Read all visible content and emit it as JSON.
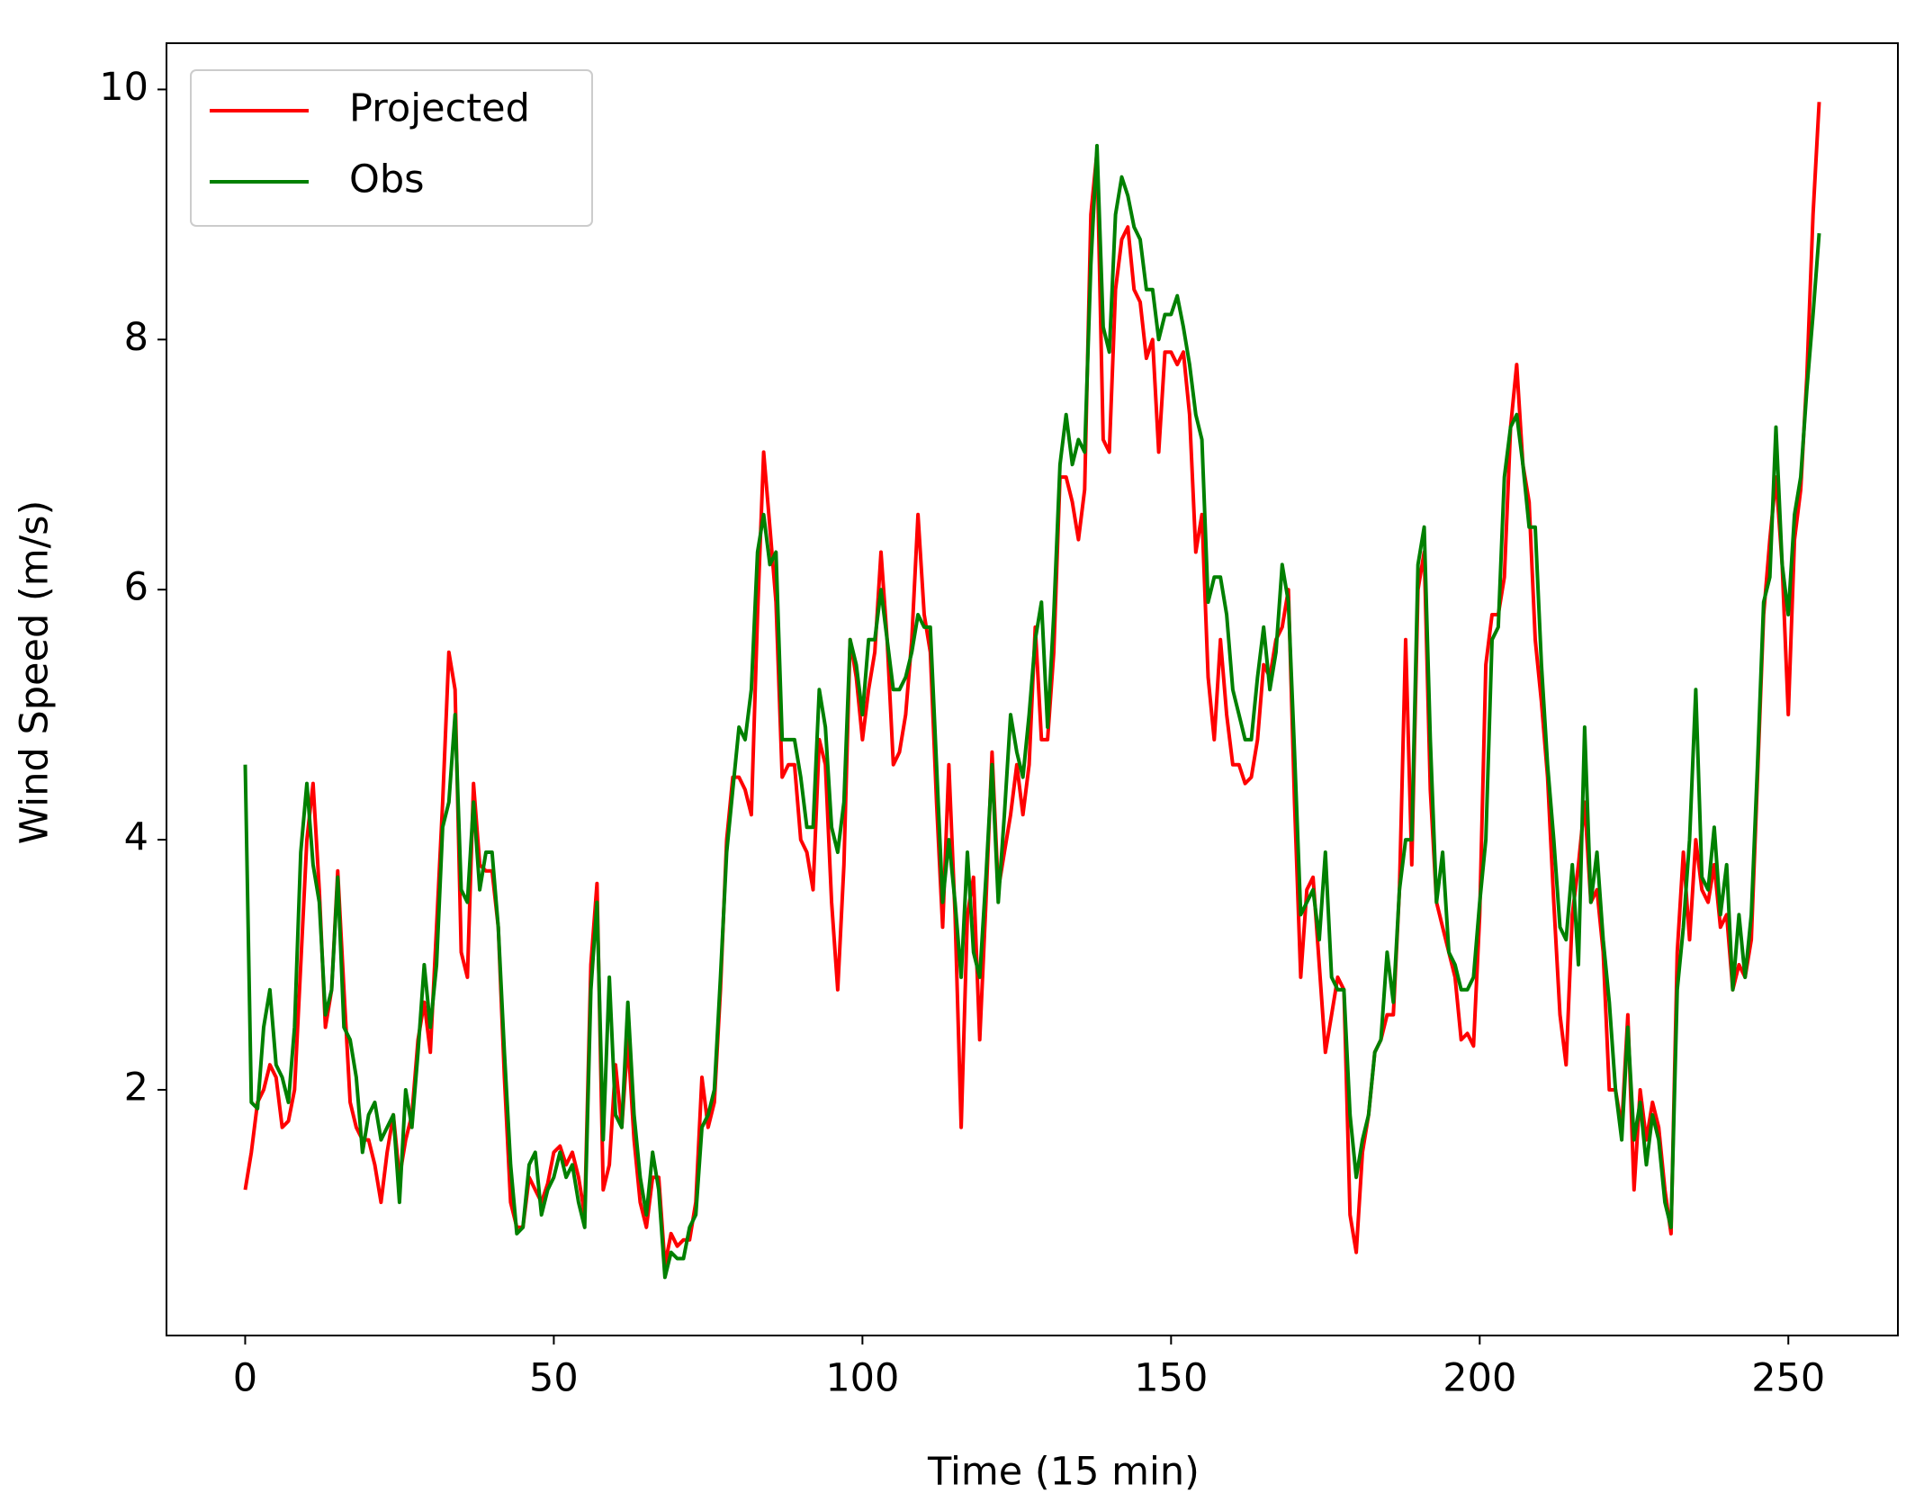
{
  "chart_data": {
    "type": "line",
    "xlabel": "Time (15 min)",
    "ylabel": "Wind Speed (m/s)",
    "x": [
      0,
      1,
      2,
      3,
      4,
      5,
      6,
      7,
      8,
      9,
      10,
      11,
      12,
      13,
      14,
      15,
      16,
      17,
      18,
      19,
      20,
      21,
      22,
      23,
      24,
      25,
      26,
      27,
      28,
      29,
      30,
      31,
      32,
      33,
      34,
      35,
      36,
      37,
      38,
      39,
      40,
      41,
      42,
      43,
      44,
      45,
      46,
      47,
      48,
      49,
      50,
      51,
      52,
      53,
      54,
      55,
      56,
      57,
      58,
      59,
      60,
      61,
      62,
      63,
      64,
      65,
      66,
      67,
      68,
      69,
      70,
      71,
      72,
      73,
      74,
      75,
      76,
      77,
      78,
      79,
      80,
      81,
      82,
      83,
      84,
      85,
      86,
      87,
      88,
      89,
      90,
      91,
      92,
      93,
      94,
      95,
      96,
      97,
      98,
      99,
      100,
      101,
      102,
      103,
      104,
      105,
      106,
      107,
      108,
      109,
      110,
      111,
      112,
      113,
      114,
      115,
      116,
      117,
      118,
      119,
      120,
      121,
      122,
      123,
      124,
      125,
      126,
      127,
      128,
      129,
      130,
      131,
      132,
      133,
      134,
      135,
      136,
      137,
      138,
      139,
      140,
      141,
      142,
      143,
      144,
      145,
      146,
      147,
      148,
      149,
      150,
      151,
      152,
      153,
      154,
      155,
      156,
      157,
      158,
      159,
      160,
      161,
      162,
      163,
      164,
      165,
      166,
      167,
      168,
      169,
      170,
      171,
      172,
      173,
      174,
      175,
      176,
      177,
      178,
      179,
      180,
      181,
      182,
      183,
      184,
      185,
      186,
      187,
      188,
      189,
      190,
      191,
      192,
      193,
      194,
      195,
      196,
      197,
      198,
      199,
      200,
      201,
      202,
      203,
      204,
      205,
      206,
      207,
      208,
      209,
      210,
      211,
      212,
      213,
      214,
      215,
      216,
      217,
      218,
      219,
      220,
      221,
      222,
      223,
      224,
      225,
      226,
      227,
      228,
      229,
      230,
      231,
      232,
      233,
      234,
      235,
      236,
      237,
      238,
      239,
      240,
      241,
      242,
      243,
      244,
      245,
      246,
      247,
      248,
      249,
      250,
      251,
      252,
      253,
      254,
      255
    ],
    "series": [
      {
        "name": "Projected",
        "color": "#ff0000",
        "values": [
          1.2,
          1.5,
          1.9,
          2.0,
          2.2,
          2.1,
          1.7,
          1.75,
          2.0,
          3.0,
          4.0,
          4.45,
          3.6,
          2.5,
          2.8,
          3.75,
          2.8,
          1.9,
          1.7,
          1.6,
          1.6,
          1.4,
          1.1,
          1.5,
          1.8,
          1.3,
          1.6,
          1.8,
          2.4,
          2.7,
          2.3,
          3.3,
          4.3,
          5.5,
          5.2,
          3.1,
          2.9,
          4.45,
          3.8,
          3.75,
          3.75,
          3.3,
          2.1,
          1.1,
          0.9,
          0.9,
          1.3,
          1.2,
          1.1,
          1.25,
          1.5,
          1.55,
          1.4,
          1.5,
          1.3,
          1.0,
          3.0,
          3.65,
          1.2,
          1.4,
          2.2,
          1.7,
          2.4,
          1.6,
          1.1,
          0.9,
          1.3,
          1.3,
          0.6,
          0.85,
          0.75,
          0.8,
          0.8,
          1.1,
          2.1,
          1.7,
          1.9,
          2.8,
          4.0,
          4.5,
          4.5,
          4.4,
          4.2,
          5.8,
          7.1,
          6.5,
          5.9,
          4.5,
          4.6,
          4.6,
          4.0,
          3.9,
          3.6,
          4.8,
          4.6,
          3.5,
          2.8,
          3.8,
          5.6,
          5.3,
          4.8,
          5.2,
          5.5,
          6.3,
          5.6,
          4.6,
          4.7,
          5.0,
          5.6,
          6.6,
          5.8,
          5.5,
          4.3,
          3.3,
          4.6,
          3.4,
          1.7,
          3.4,
          3.7,
          2.4,
          3.5,
          4.7,
          3.6,
          3.9,
          4.2,
          4.6,
          4.2,
          4.6,
          5.7,
          4.8,
          4.8,
          5.5,
          6.9,
          6.9,
          6.7,
          6.4,
          6.8,
          9.0,
          9.5,
          7.2,
          7.1,
          8.4,
          8.8,
          8.9,
          8.4,
          8.3,
          7.85,
          8.0,
          7.1,
          7.9,
          7.9,
          7.8,
          7.9,
          7.4,
          6.3,
          6.6,
          5.3,
          4.8,
          5.6,
          5.0,
          4.6,
          4.6,
          4.45,
          4.5,
          4.8,
          5.4,
          5.3,
          5.6,
          5.7,
          6.0,
          4.3,
          2.9,
          3.6,
          3.7,
          3.0,
          2.3,
          2.6,
          2.9,
          2.8,
          1.0,
          0.7,
          1.5,
          1.8,
          2.3,
          2.4,
          2.6,
          2.6,
          3.6,
          5.6,
          3.8,
          6.0,
          6.3,
          4.4,
          3.5,
          3.3,
          3.1,
          2.9,
          2.4,
          2.45,
          2.35,
          3.4,
          5.4,
          5.8,
          5.8,
          6.1,
          7.3,
          7.8,
          7.0,
          6.7,
          5.6,
          5.1,
          4.5,
          3.5,
          2.6,
          2.2,
          3.4,
          3.8,
          4.3,
          3.5,
          3.6,
          3.1,
          2.0,
          2.0,
          1.7,
          2.6,
          1.2,
          2.0,
          1.6,
          1.9,
          1.7,
          1.2,
          0.85,
          3.1,
          3.9,
          3.2,
          4.0,
          3.6,
          3.5,
          3.8,
          3.3,
          3.4,
          2.8,
          3.0,
          2.9,
          3.2,
          4.5,
          5.8,
          6.4,
          6.9,
          6.2,
          5.0,
          6.4,
          6.8,
          7.7,
          9.0,
          9.9
        ]
      },
      {
        "name": "Obs",
        "color": "#008000",
        "values": [
          4.6,
          1.9,
          1.85,
          2.5,
          2.8,
          2.2,
          2.1,
          1.9,
          2.5,
          3.9,
          4.45,
          3.8,
          3.5,
          2.6,
          2.8,
          3.7,
          2.5,
          2.4,
          2.1,
          1.5,
          1.8,
          1.9,
          1.6,
          1.7,
          1.8,
          1.1,
          2.0,
          1.7,
          2.3,
          3.0,
          2.5,
          3.0,
          4.1,
          4.3,
          5.0,
          3.6,
          3.5,
          4.3,
          3.6,
          3.9,
          3.9,
          3.3,
          2.3,
          1.4,
          0.85,
          0.9,
          1.4,
          1.5,
          1.0,
          1.2,
          1.3,
          1.5,
          1.3,
          1.4,
          1.1,
          0.9,
          2.8,
          3.5,
          1.6,
          2.9,
          1.8,
          1.7,
          2.7,
          1.8,
          1.3,
          1.0,
          1.5,
          1.2,
          0.5,
          0.7,
          0.65,
          0.65,
          0.9,
          1.0,
          1.7,
          1.8,
          2.0,
          2.9,
          3.9,
          4.4,
          4.9,
          4.8,
          5.2,
          6.3,
          6.6,
          6.2,
          6.3,
          4.8,
          4.8,
          4.8,
          4.5,
          4.1,
          4.1,
          5.2,
          4.9,
          4.1,
          3.9,
          4.3,
          5.6,
          5.4,
          5.0,
          5.6,
          5.6,
          6.0,
          5.6,
          5.2,
          5.2,
          5.3,
          5.5,
          5.8,
          5.7,
          5.7,
          4.6,
          3.5,
          4.0,
          3.5,
          2.9,
          3.9,
          3.1,
          2.9,
          3.7,
          4.6,
          3.5,
          4.2,
          5.0,
          4.7,
          4.5,
          5.0,
          5.6,
          5.9,
          4.9,
          5.8,
          7.0,
          7.4,
          7.0,
          7.2,
          7.1,
          8.6,
          9.55,
          8.1,
          7.9,
          9.0,
          9.3,
          9.15,
          8.9,
          8.8,
          8.4,
          8.4,
          8.0,
          8.2,
          8.2,
          8.35,
          8.1,
          7.8,
          7.4,
          7.2,
          5.9,
          6.1,
          6.1,
          5.8,
          5.2,
          5.0,
          4.8,
          4.8,
          5.3,
          5.7,
          5.2,
          5.5,
          6.2,
          5.9,
          4.7,
          3.4,
          3.5,
          3.6,
          3.2,
          3.9,
          2.9,
          2.8,
          2.8,
          1.8,
          1.3,
          1.6,
          1.8,
          2.3,
          2.4,
          3.1,
          2.7,
          3.6,
          4.0,
          4.0,
          6.2,
          6.5,
          4.8,
          3.5,
          3.9,
          3.1,
          3.0,
          2.8,
          2.8,
          2.9,
          3.5,
          4.0,
          5.6,
          5.7,
          6.9,
          7.3,
          7.4,
          7.0,
          6.5,
          6.5,
          5.4,
          4.6,
          4.0,
          3.3,
          3.2,
          3.8,
          3.0,
          4.9,
          3.5,
          3.9,
          3.2,
          2.7,
          2.0,
          1.6,
          2.5,
          1.6,
          1.9,
          1.4,
          1.8,
          1.6,
          1.1,
          0.9,
          2.8,
          3.3,
          4.0,
          5.2,
          3.7,
          3.6,
          4.1,
          3.4,
          3.8,
          2.8,
          3.4,
          2.9,
          3.4,
          4.6,
          5.9,
          6.1,
          7.3,
          6.2,
          5.8,
          6.6,
          6.9,
          7.6,
          8.2,
          8.85
        ]
      }
    ],
    "xlim": [
      -12.75,
      267.75
    ],
    "xticks": [
      0,
      50,
      100,
      150,
      200,
      250
    ],
    "ylim": [
      0.035,
      10.37
    ],
    "yticks": [
      2,
      4,
      6,
      8,
      10
    ],
    "grid": false,
    "legend": "upper left"
  }
}
